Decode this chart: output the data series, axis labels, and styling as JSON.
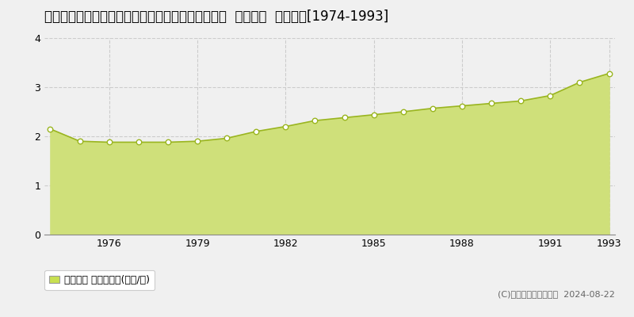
{
  "title": "栃木県下都賀郡壬生町大字七ツ石字柴田内７９０番  地価公示  地価推移[1974-1993]",
  "years": [
    1974,
    1975,
    1976,
    1977,
    1978,
    1979,
    1980,
    1981,
    1982,
    1983,
    1984,
    1985,
    1986,
    1987,
    1988,
    1989,
    1990,
    1991,
    1992,
    1993
  ],
  "values": [
    2.15,
    1.9,
    1.88,
    1.88,
    1.88,
    1.9,
    1.96,
    2.1,
    2.2,
    2.32,
    2.38,
    2.44,
    2.5,
    2.57,
    2.62,
    2.67,
    2.72,
    2.83,
    3.1,
    3.28
  ],
  "ylim": [
    0,
    4
  ],
  "yticks": [
    0,
    1,
    2,
    3,
    4
  ],
  "xticks": [
    1976,
    1979,
    1982,
    1985,
    1988,
    1991,
    1993
  ],
  "fill_color": "#cfe07a",
  "line_color": "#9ab520",
  "marker_facecolor": "#ffffff",
  "marker_edgecolor": "#9ab520",
  "grid_color": "#cccccc",
  "bg_color": "#f0f0f0",
  "plot_bg_color": "#f0f0f0",
  "legend_label": "地価公示 平均坪単価(万円/坪)",
  "legend_marker_color": "#c8e050",
  "copyright_text": "(C)土地価格ドットコム  2024-08-22",
  "title_fontsize": 12,
  "tick_fontsize": 9,
  "legend_fontsize": 9,
  "copyright_fontsize": 8
}
